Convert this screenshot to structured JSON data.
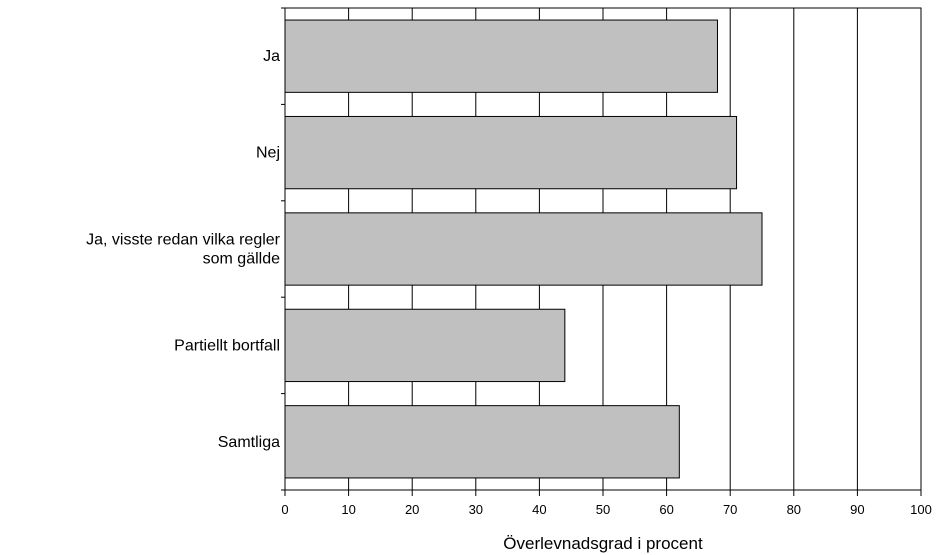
{
  "chart_data": {
    "type": "bar",
    "orientation": "horizontal",
    "title": "",
    "xlabel": "Överlevnadsgrad i procent",
    "ylabel": "",
    "categories": [
      [
        "Ja"
      ],
      [
        "Nej"
      ],
      [
        "Ja, visste redan vilka regler",
        "som gällde"
      ],
      [
        "Partiellt bortfall"
      ],
      [
        "Samtliga"
      ]
    ],
    "values": [
      68,
      71,
      75,
      44,
      62
    ],
    "xlim": [
      0,
      100
    ],
    "xticks": [
      0,
      10,
      20,
      30,
      40,
      50,
      60,
      70,
      80,
      90,
      100
    ],
    "grid": "vertical",
    "legend": "none",
    "colors": {
      "bar": "#c0c0c0",
      "bar_edge": "#000000",
      "grid": "#000000",
      "background": "#ffffff"
    }
  }
}
